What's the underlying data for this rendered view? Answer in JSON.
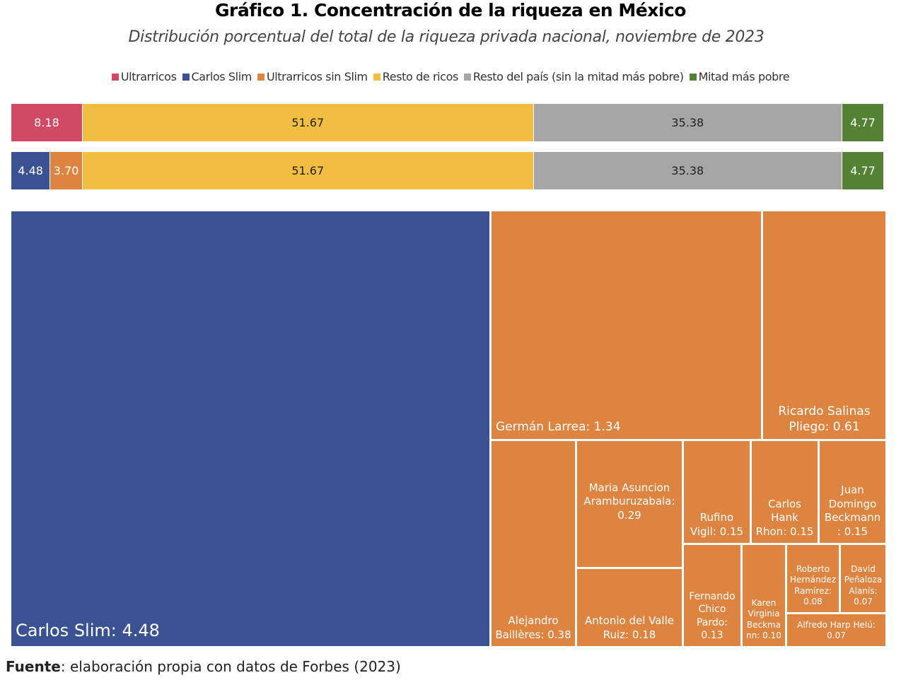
{
  "chart_data": [
    {
      "type": "bar",
      "orientation": "horizontal-stacked",
      "title": "Gráfico 1. Concentración de la riqueza en México",
      "subtitle": "Distribución porcentual del total de la riqueza privada nacional, noviembre de 2023",
      "legend": {
        "placement": "top",
        "items": [
          {
            "name": "Ultrarricos",
            "color": "#d04a66"
          },
          {
            "name": "Carlos Slim",
            "color": "#3a5192"
          },
          {
            "name": "Ultrarricos sin Slim",
            "color": "#dc8440"
          },
          {
            "name": "Resto de ricos",
            "color": "#f2be42"
          },
          {
            "name": "Resto del país (sin la mitad más pobre)",
            "color": "#a6a6a6"
          },
          {
            "name": "Mitad más pobre",
            "color": "#548235"
          }
        ]
      },
      "bars": [
        {
          "segments": [
            {
              "series": "Ultrarricos",
              "value": 8.18,
              "label": "8.18",
              "color": "#d04a66"
            },
            {
              "series": "Resto de ricos",
              "value": 51.67,
              "label": "51.67",
              "color": "#f2be42"
            },
            {
              "series": "Resto del país (sin la mitad más pobre)",
              "value": 35.38,
              "label": "35.38",
              "color": "#a6a6a6"
            },
            {
              "series": "Mitad más pobre",
              "value": 4.77,
              "label": "4.77",
              "color": "#548235"
            }
          ]
        },
        {
          "segments": [
            {
              "series": "Carlos Slim",
              "value": 4.48,
              "label": "4.48",
              "color": "#3a5192"
            },
            {
              "series": "Ultrarricos sin Slim",
              "value": 3.7,
              "label": "3.70",
              "color": "#dc8440"
            },
            {
              "series": "Resto de ricos",
              "value": 51.67,
              "label": "51.67",
              "color": "#f2be42"
            },
            {
              "series": "Resto del país (sin la mitad más pobre)",
              "value": 35.38,
              "label": "35.38",
              "color": "#a6a6a6"
            },
            {
              "series": "Mitad más pobre",
              "value": 4.77,
              "label": "4.77",
              "color": "#548235"
            }
          ]
        }
      ]
    },
    {
      "type": "treemap",
      "items": [
        {
          "name": "Carlos Slim",
          "value": 4.48,
          "label": "Carlos Slim: 4.48",
          "color": "#3a5192"
        },
        {
          "name": "Germán Larrea",
          "value": 1.34,
          "label": "Germán Larrea: 1.34",
          "color": "#dc8440"
        },
        {
          "name": "Ricardo Salinas Pliego",
          "value": 0.61,
          "label": "Ricardo Salinas Pliego: 0.61",
          "color": "#dc8440"
        },
        {
          "name": "Alejandro Baillères",
          "value": 0.38,
          "label": "Alejandro Baillères: 0.38",
          "color": "#dc8440"
        },
        {
          "name": "Maria Asuncion Aramburuzabala",
          "value": 0.29,
          "label": "Maria Asuncion Aramburuzabala: 0.29",
          "color": "#dc8440"
        },
        {
          "name": "Antonio del Valle Ruiz",
          "value": 0.18,
          "label": "Antonio del Valle Ruiz: 0.18",
          "color": "#dc8440"
        },
        {
          "name": "Rufino Vigil",
          "value": 0.15,
          "label": "Rufino Vigil: 0.15",
          "color": "#dc8440"
        },
        {
          "name": "Carlos Hank Rhon",
          "value": 0.15,
          "label": "Carlos Hank Rhon: 0.15",
          "color": "#dc8440"
        },
        {
          "name": "Juan Domingo Beckmann",
          "value": 0.15,
          "label": "Juan Domingo Beckmann : 0.15",
          "color": "#dc8440"
        },
        {
          "name": "Fernando Chico Pardo",
          "value": 0.13,
          "label": "Fernando Chico Pardo: 0.13",
          "color": "#dc8440"
        },
        {
          "name": "Karen Virginia Beckmann",
          "value": 0.1,
          "label": "Karen Virginia Beckma nn: 0.10",
          "color": "#dc8440"
        },
        {
          "name": "Roberto Hernández Ramírez",
          "value": 0.08,
          "label": "Roberto Hernández Ramírez: 0.08",
          "color": "#dc8440"
        },
        {
          "name": "David Peñaloza Alanís",
          "value": 0.07,
          "label": "David Peñaloza Alanís: 0.07",
          "color": "#dc8440"
        },
        {
          "name": "Alfredo Harp Helú",
          "value": 0.07,
          "label": "Alfredo Harp Helú: 0.07",
          "color": "#dc8440"
        }
      ]
    }
  ],
  "source": {
    "bold": "Fuente",
    "text": ": elaboración propia con datos de Forbes (2023)"
  }
}
